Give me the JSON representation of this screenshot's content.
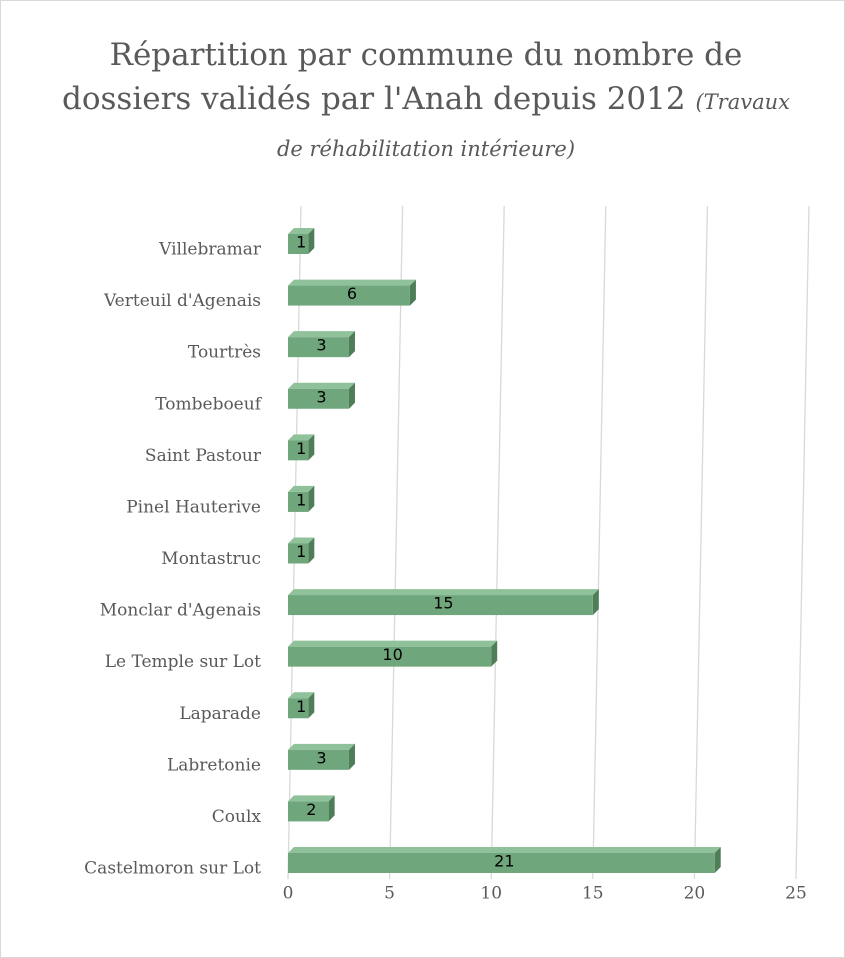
{
  "chart_data": {
    "type": "bar",
    "orientation": "horizontal",
    "title": "Répartition par commune du nombre de dossiers validés par l'Anah depuis 2012",
    "subtitle": "(Travaux de réhabilitation intérieure)",
    "categories": [
      "Villebramar",
      "Verteuil d'Agenais",
      "Tourtrès",
      "Tombeboeuf",
      "Saint Pastour",
      "Pinel Hauterive",
      "Montastruc",
      "Monclar d'Agenais",
      "Le Temple sur Lot",
      "Laparade",
      "Labretonie",
      "Coulx",
      "Castelmoron sur Lot"
    ],
    "values": [
      1,
      6,
      3,
      3,
      1,
      1,
      1,
      15,
      10,
      1,
      3,
      2,
      21
    ],
    "color": "#6fa67b",
    "xlim": [
      0,
      25
    ],
    "xticks": [
      0,
      5,
      10,
      15,
      20,
      25
    ],
    "grid": true
  }
}
